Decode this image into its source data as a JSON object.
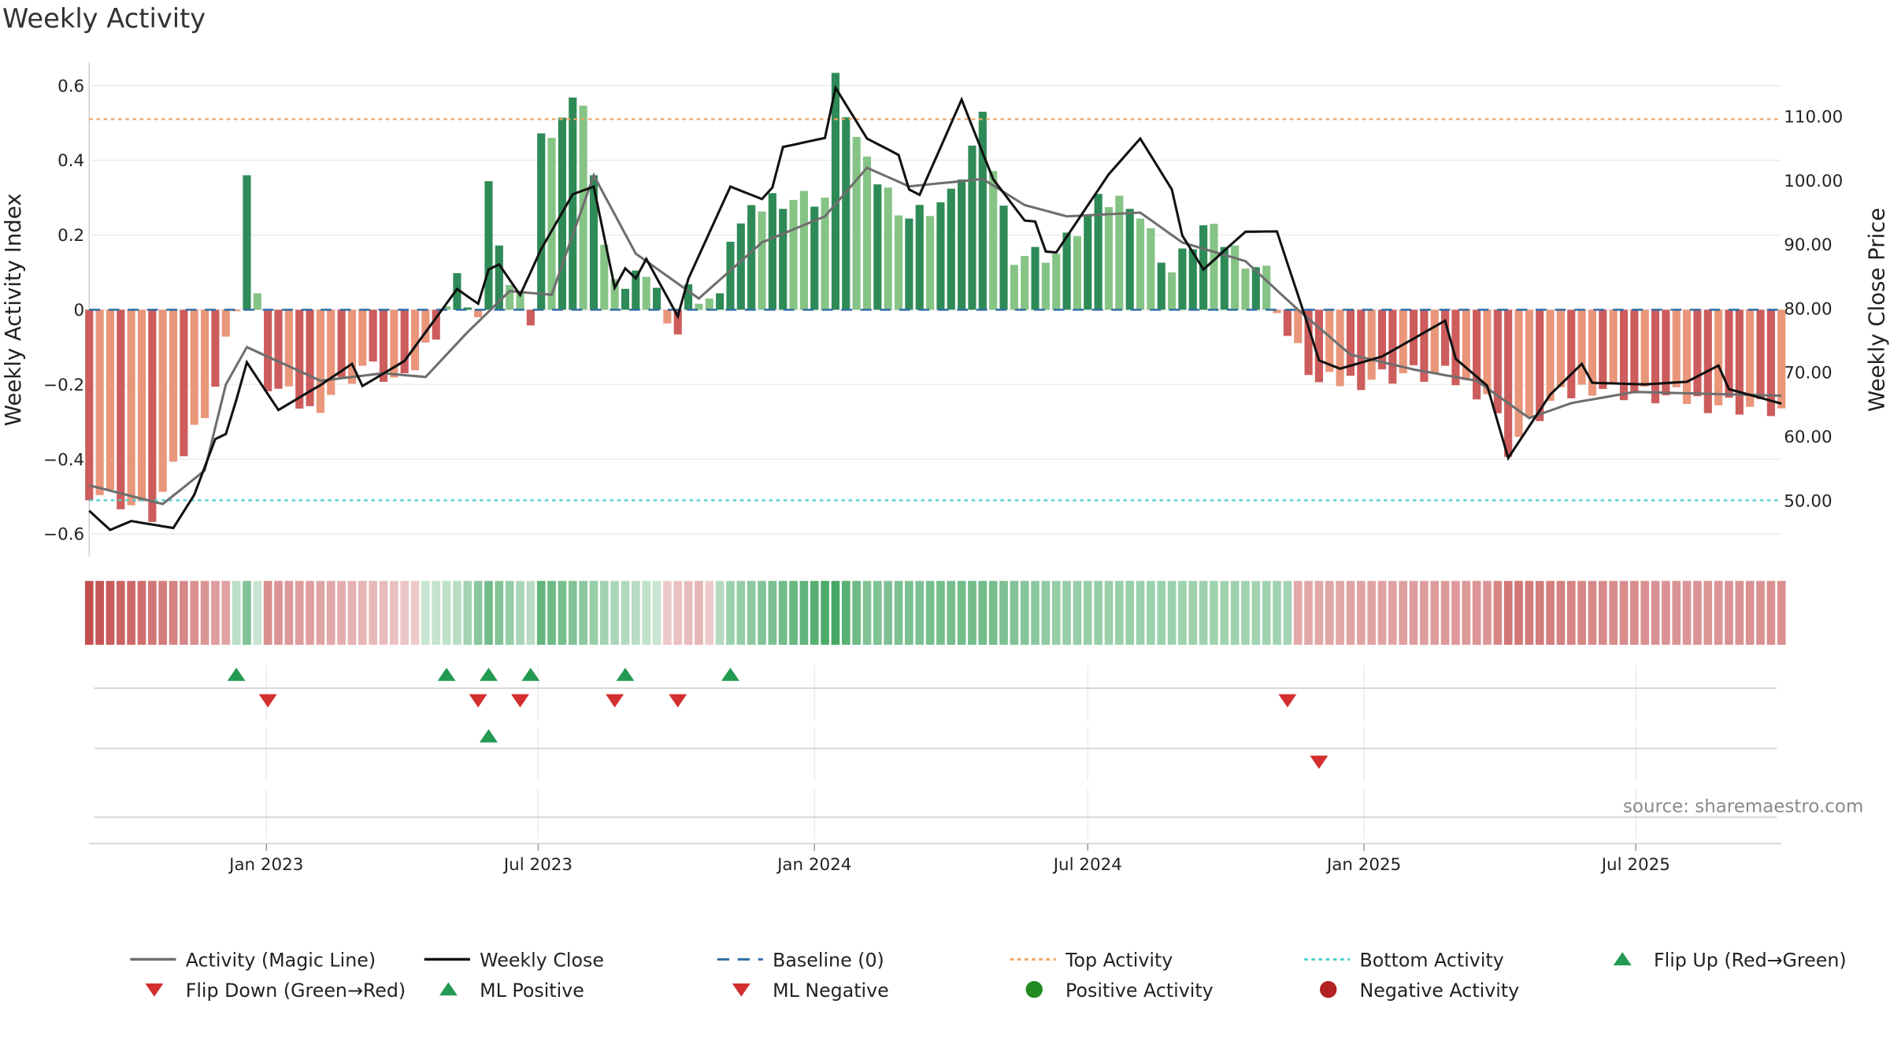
{
  "title": "Weekly Activity",
  "source": "source: sharemaestro.com",
  "colors": {
    "pos_dark": "#2e8b57",
    "pos_light": "#86c486",
    "neg_dark": "#cd5c5c",
    "neg_light": "#e9967a",
    "magic": "#6e6e6e",
    "close": "#111111",
    "baseline": "#2f6ea5",
    "top": "#f4a460",
    "bottom": "#48d1cc",
    "flip_up": "#239a52",
    "flip_down": "#d32f2f"
  },
  "chart_data": {
    "type": "bar",
    "title": "Weekly Activity",
    "ylabel_left": "Weekly Activity Index",
    "ylabel_right": "Weekly Close Price",
    "ylim_left": [
      -0.65,
      0.65
    ],
    "ylim_right": [
      41.5,
      115.0
    ],
    "yticks_left": [
      -0.6,
      -0.4,
      -0.2,
      0,
      0.2,
      0.4,
      0.6
    ],
    "ytick_labels_left": [
      "−0.6",
      "−0.4",
      "−0.2",
      "0",
      "0.2",
      "0.4",
      "0.6"
    ],
    "yticks_right": [
      50,
      60,
      70,
      80,
      90,
      100,
      110
    ],
    "ytick_labels_right": [
      "50.00",
      "60.00",
      "70.00",
      "80.00",
      "90.00",
      "100.00",
      "110.00"
    ],
    "top_activity": 0.51,
    "bottom_activity": -0.51,
    "x_start": "2022-09-05",
    "x_end": "2025-10-06",
    "xticks": [
      "2023-01-01",
      "2023-07-01",
      "2024-01-01",
      "2024-07-01",
      "2025-01-01",
      "2025-07-01"
    ],
    "xtick_labels": [
      "Jan 2023",
      "Jul 2023",
      "Jan 2024",
      "Jul 2024",
      "Jan 2025",
      "Jul 2025"
    ],
    "activity_anchors": [
      [
        "2022-09-05",
        -0.48
      ],
      [
        "2022-09-26",
        -0.51
      ],
      [
        "2022-10-17",
        -0.55
      ],
      [
        "2022-11-07",
        -0.38
      ],
      [
        "2022-11-28",
        -0.2
      ],
      [
        "2022-12-12",
        0.02
      ],
      [
        "2022-12-19",
        0.36
      ],
      [
        "2022-12-26",
        0.02
      ],
      [
        "2023-01-02",
        -0.2
      ],
      [
        "2023-01-30",
        -0.27
      ],
      [
        "2023-03-06",
        -0.15
      ],
      [
        "2023-04-03",
        -0.2
      ],
      [
        "2023-04-24",
        -0.05
      ],
      [
        "2023-05-08",
        0.08
      ],
      [
        "2023-05-22",
        -0.02
      ],
      [
        "2023-05-29",
        0.32
      ],
      [
        "2023-06-12",
        0.06
      ],
      [
        "2023-06-26",
        -0.03
      ],
      [
        "2023-07-03",
        0.46
      ],
      [
        "2023-07-24",
        0.55
      ],
      [
        "2023-07-31",
        0.57
      ],
      [
        "2023-08-14",
        0.15
      ],
      [
        "2023-08-28",
        0.05
      ],
      [
        "2023-09-11",
        0.1
      ],
      [
        "2023-10-02",
        -0.06
      ],
      [
        "2023-10-09",
        0.05
      ],
      [
        "2023-10-30",
        0.02
      ],
      [
        "2023-11-06",
        0.2
      ],
      [
        "2023-12-04",
        0.3
      ],
      [
        "2024-01-08",
        0.3
      ],
      [
        "2024-01-15",
        0.61
      ],
      [
        "2024-02-05",
        0.38
      ],
      [
        "2024-03-04",
        0.25
      ],
      [
        "2024-04-01",
        0.3
      ],
      [
        "2024-04-22",
        0.5
      ],
      [
        "2024-05-13",
        0.15
      ],
      [
        "2024-06-10",
        0.15
      ],
      [
        "2024-07-08",
        0.28
      ],
      [
        "2024-07-29",
        0.3
      ],
      [
        "2024-08-26",
        0.1
      ],
      [
        "2024-09-16",
        0.22
      ],
      [
        "2024-10-28",
        0.1
      ],
      [
        "2024-11-11",
        -0.07
      ],
      [
        "2024-12-02",
        -0.2
      ],
      [
        "2025-01-27",
        -0.17
      ],
      [
        "2025-02-24",
        -0.18
      ],
      [
        "2025-03-24",
        -0.22
      ],
      [
        "2025-04-07",
        -0.37
      ],
      [
        "2025-05-05",
        -0.25
      ],
      [
        "2025-06-02",
        -0.2
      ],
      [
        "2025-07-07",
        -0.23
      ],
      [
        "2025-08-04",
        -0.24
      ],
      [
        "2025-10-06",
        -0.27
      ]
    ],
    "magic_line": [
      [
        "2022-09-05",
        -0.47
      ],
      [
        "2022-10-24",
        -0.52
      ],
      [
        "2022-11-21",
        -0.43
      ],
      [
        "2022-12-05",
        -0.2
      ],
      [
        "2022-12-19",
        -0.1
      ],
      [
        "2023-02-06",
        -0.19
      ],
      [
        "2023-03-20",
        -0.17
      ],
      [
        "2023-04-17",
        -0.18
      ],
      [
        "2023-05-15",
        -0.06
      ],
      [
        "2023-06-12",
        0.05
      ],
      [
        "2023-07-10",
        0.04
      ],
      [
        "2023-08-07",
        0.36
      ],
      [
        "2023-09-04",
        0.15
      ],
      [
        "2023-10-16",
        0.03
      ],
      [
        "2023-11-27",
        0.18
      ],
      [
        "2024-01-08",
        0.25
      ],
      [
        "2024-02-05",
        0.38
      ],
      [
        "2024-03-04",
        0.33
      ],
      [
        "2024-04-22",
        0.35
      ],
      [
        "2024-05-20",
        0.28
      ],
      [
        "2024-06-17",
        0.25
      ],
      [
        "2024-08-05",
        0.26
      ],
      [
        "2024-09-02",
        0.18
      ],
      [
        "2024-10-14",
        0.13
      ],
      [
        "2024-11-18",
        0.0
      ],
      [
        "2024-12-23",
        -0.12
      ],
      [
        "2025-02-03",
        -0.16
      ],
      [
        "2025-03-17",
        -0.19
      ],
      [
        "2025-04-21",
        -0.29
      ],
      [
        "2025-05-19",
        -0.25
      ],
      [
        "2025-06-30",
        -0.22
      ],
      [
        "2025-10-06",
        -0.23
      ]
    ],
    "weekly_close": [
      [
        "2022-09-05",
        50.5
      ],
      [
        "2022-09-19",
        46.8
      ],
      [
        "2022-10-03",
        47.5
      ],
      [
        "2022-10-31",
        45.0
      ],
      [
        "2022-11-14",
        49.5
      ],
      [
        "2022-11-28",
        57.5
      ],
      [
        "2022-12-12",
        67.5
      ],
      [
        "2022-12-19",
        73.0
      ],
      [
        "2023-01-09",
        64.5
      ],
      [
        "2023-02-06",
        67.0
      ],
      [
        "2023-03-06",
        70.0
      ],
      [
        "2023-04-03",
        72.5
      ],
      [
        "2023-05-08",
        82.0
      ],
      [
        "2023-05-22",
        79.0
      ],
      [
        "2023-06-05",
        89.0
      ],
      [
        "2023-06-19",
        83.5
      ],
      [
        "2023-07-03",
        90.0
      ],
      [
        "2023-07-24",
        97.5
      ],
      [
        "2023-08-07",
        98.0
      ],
      [
        "2023-08-21",
        81.5
      ],
      [
        "2023-09-11",
        89.5
      ],
      [
        "2023-10-02",
        79.5
      ],
      [
        "2023-10-09",
        85.0
      ],
      [
        "2023-11-06",
        98.0
      ],
      [
        "2023-11-27",
        95.0
      ],
      [
        "2023-12-11",
        107.0
      ],
      [
        "2024-01-08",
        107.0
      ],
      [
        "2024-01-15",
        114.5
      ],
      [
        "2024-02-05",
        105.5
      ],
      [
        "2024-03-11",
        99.5
      ],
      [
        "2024-04-08",
        113.0
      ],
      [
        "2024-04-29",
        99.5
      ],
      [
        "2024-05-20",
        92.0
      ],
      [
        "2024-06-10",
        90.5
      ],
      [
        "2024-07-15",
        101.0
      ],
      [
        "2024-08-05",
        105.5
      ],
      [
        "2024-09-16",
        87.5
      ],
      [
        "2024-10-14",
        92.0
      ],
      [
        "2024-11-04",
        91.0
      ],
      [
        "2024-11-25",
        75.0
      ],
      [
        "2024-12-16",
        72.0
      ],
      [
        "2025-01-13",
        72.5
      ],
      [
        "2025-02-24",
        76.0
      ],
      [
        "2025-03-24",
        69.0
      ],
      [
        "2025-04-07",
        57.0
      ],
      [
        "2025-05-05",
        65.5
      ],
      [
        "2025-06-02",
        70.5
      ],
      [
        "2025-07-07",
        68.5
      ],
      [
        "2025-08-04",
        67.5
      ],
      [
        "2025-09-01",
        69.5
      ],
      [
        "2025-10-06",
        65.5
      ]
    ],
    "heat_strip": [
      [
        "2022-09-05",
        -1.0
      ],
      [
        "2022-12-05",
        -0.35
      ],
      [
        "2022-12-19",
        0.5
      ],
      [
        "2023-01-02",
        -0.5
      ],
      [
        "2023-05-08",
        0.1
      ],
      [
        "2023-05-29",
        0.6
      ],
      [
        "2023-06-26",
        0.1
      ],
      [
        "2023-07-03",
        0.7
      ],
      [
        "2023-08-21",
        0.2
      ],
      [
        "2023-10-16",
        -0.2
      ],
      [
        "2023-11-06",
        0.3
      ],
      [
        "2024-01-15",
        0.9
      ],
      [
        "2024-02-05",
        0.5
      ],
      [
        "2024-04-22",
        0.6
      ],
      [
        "2024-06-10",
        0.35
      ],
      [
        "2024-11-11",
        0.25
      ],
      [
        "2024-11-18",
        -0.3
      ],
      [
        "2025-01-13",
        -0.35
      ],
      [
        "2025-03-24",
        -0.45
      ],
      [
        "2025-04-07",
        -0.7
      ],
      [
        "2025-06-02",
        -0.55
      ],
      [
        "2025-08-04",
        -0.45
      ],
      [
        "2025-10-06",
        -0.5
      ]
    ],
    "flip_up_dates": [
      "2022-12-12",
      "2023-05-01",
      "2023-05-29",
      "2023-06-26",
      "2023-08-28",
      "2023-11-06"
    ],
    "flip_down_dates": [
      "2023-01-02",
      "2023-05-22",
      "2023-06-19",
      "2023-08-21",
      "2023-10-02",
      "2024-11-11"
    ],
    "ml_positive_dates": [
      "2023-05-29"
    ],
    "ml_negative_dates": [
      "2024-12-02"
    ]
  },
  "legend": [
    {
      "key": "magic",
      "label": "Activity (Magic Line)",
      "shape": "line"
    },
    {
      "key": "close",
      "label": "Weekly Close",
      "shape": "line"
    },
    {
      "key": "baseline",
      "label": "Baseline (0)",
      "shape": "dashed"
    },
    {
      "key": "top",
      "label": "Top Activity",
      "shape": "dotted"
    },
    {
      "key": "bottom",
      "label": "Bottom Activity",
      "shape": "dotted"
    },
    {
      "key": "flip_up",
      "label": "Flip Up (Red→Green)",
      "shape": "triangle-up"
    },
    {
      "key": "flip_down",
      "label": "Flip Down (Green→Red)",
      "shape": "triangle-down"
    },
    {
      "key": "flip_up",
      "label": "ML Positive",
      "shape": "triangle-up"
    },
    {
      "key": "flip_down",
      "label": "ML Negative",
      "shape": "triangle-down"
    },
    {
      "key": "pos_dot",
      "label": "Positive Activity",
      "shape": "circle",
      "color": "#228b22"
    },
    {
      "key": "neg_dot",
      "label": "Negative Activity",
      "shape": "circle",
      "color": "#b22222"
    }
  ]
}
